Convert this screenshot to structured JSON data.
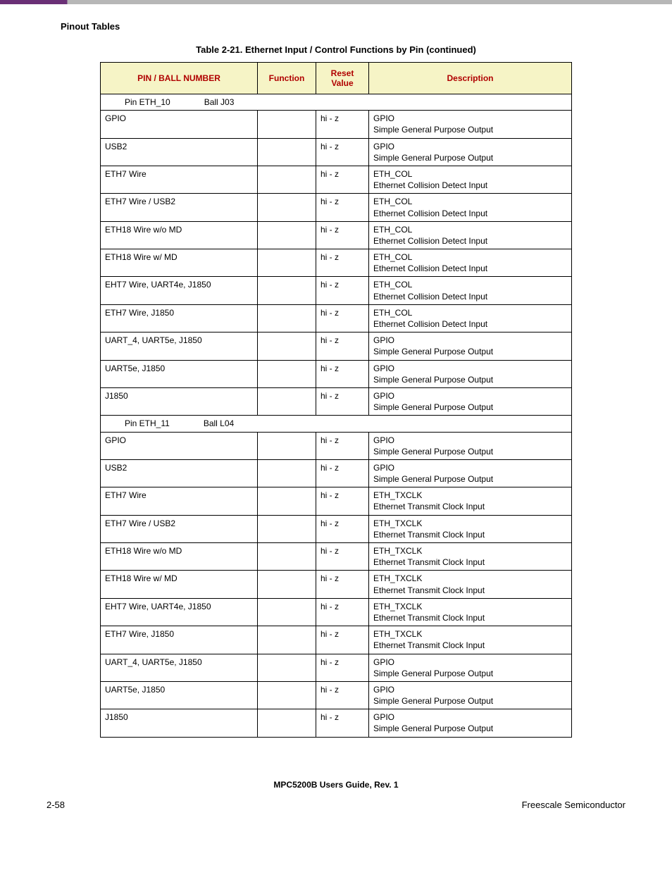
{
  "section_label": "Pinout Tables",
  "table_caption": "Table 2-21. Ethernet Input / Control Functions by Pin (continued)",
  "columns": {
    "pin": "PIN / BALL NUMBER",
    "function": "Function",
    "reset": "Reset Value",
    "description": "Description"
  },
  "groups": [
    {
      "pin_label": "Pin  ETH_10",
      "ball_label": "Ball J03",
      "rows": [
        {
          "pin": "GPIO",
          "function": "",
          "reset": "hi - z",
          "desc1": "GPIO",
          "desc2": "Simple General Purpose Output"
        },
        {
          "pin": "USB2",
          "function": "",
          "reset": "hi - z",
          "desc1": "GPIO",
          "desc2": "Simple General Purpose Output"
        },
        {
          "pin": "ETH7 Wire",
          "function": "",
          "reset": "hi - z",
          "desc1": "ETH_COL",
          "desc2": "Ethernet Collision Detect Input"
        },
        {
          "pin": "ETH7 Wire / USB2",
          "function": "",
          "reset": "hi - z",
          "desc1": "ETH_COL",
          "desc2": "Ethernet Collision Detect Input"
        },
        {
          "pin": "ETH18 Wire w/o MD",
          "function": "",
          "reset": "hi - z",
          "desc1": "ETH_COL",
          "desc2": "Ethernet Collision Detect Input"
        },
        {
          "pin": "ETH18 Wire w/ MD",
          "function": "",
          "reset": "hi - z",
          "desc1": "ETH_COL",
          "desc2": "Ethernet Collision Detect Input"
        },
        {
          "pin": "EHT7 Wire, UART4e, J1850",
          "function": "",
          "reset": "hi - z",
          "desc1": "ETH_COL",
          "desc2": "Ethernet Collision Detect Input"
        },
        {
          "pin": "ETH7 Wire, J1850",
          "function": "",
          "reset": "hi - z",
          "desc1": "ETH_COL",
          "desc2": "Ethernet Collision Detect Input"
        },
        {
          "pin": "UART_4, UART5e, J1850",
          "function": "",
          "reset": "hi - z",
          "desc1": "GPIO",
          "desc2": "Simple General Purpose Output"
        },
        {
          "pin": "UART5e, J1850",
          "function": "",
          "reset": "hi - z",
          "desc1": "GPIO",
          "desc2": "Simple General Purpose Output"
        },
        {
          "pin": "J1850",
          "function": "",
          "reset": "hi - z",
          "desc1": "GPIO",
          "desc2": "Simple General Purpose Output"
        }
      ]
    },
    {
      "pin_label": "Pin  ETH_11",
      "ball_label": "Ball L04",
      "rows": [
        {
          "pin": "GPIO",
          "function": "",
          "reset": "hi - z",
          "desc1": "GPIO",
          "desc2": "Simple General Purpose Output"
        },
        {
          "pin": "USB2",
          "function": "",
          "reset": "hi - z",
          "desc1": "GPIO",
          "desc2": "Simple General Purpose Output"
        },
        {
          "pin": "ETH7 Wire",
          "function": "",
          "reset": "hi - z",
          "desc1": "ETH_TXCLK",
          "desc2": "Ethernet Transmit Clock Input"
        },
        {
          "pin": "ETH7 Wire / USB2",
          "function": "",
          "reset": "hi - z",
          "desc1": "ETH_TXCLK",
          "desc2": "Ethernet Transmit Clock Input"
        },
        {
          "pin": "ETH18 Wire w/o MD",
          "function": "",
          "reset": "hi - z",
          "desc1": "ETH_TXCLK",
          "desc2": "Ethernet Transmit Clock Input"
        },
        {
          "pin": "ETH18 Wire w/ MD",
          "function": "",
          "reset": "hi - z",
          "desc1": "ETH_TXCLK",
          "desc2": "Ethernet Transmit Clock Input"
        },
        {
          "pin": "EHT7 Wire, UART4e, J1850",
          "function": "",
          "reset": "hi - z",
          "desc1": "ETH_TXCLK",
          "desc2": "Ethernet Transmit Clock Input"
        },
        {
          "pin": "ETH7 Wire, J1850",
          "function": "",
          "reset": "hi - z",
          "desc1": "ETH_TXCLK",
          "desc2": "Ethernet Transmit Clock Input"
        },
        {
          "pin": "UART_4, UART5e, J1850",
          "function": "",
          "reset": "hi - z",
          "desc1": "GPIO",
          "desc2": "Simple General Purpose Output"
        },
        {
          "pin": "UART5e, J1850",
          "function": "",
          "reset": "hi - z",
          "desc1": "GPIO",
          "desc2": "Simple General Purpose Output"
        },
        {
          "pin": "J1850",
          "function": "",
          "reset": "hi - z",
          "desc1": "GPIO",
          "desc2": "Simple General Purpose Output"
        }
      ]
    }
  ],
  "footer_center": "MPC5200B Users Guide, Rev. 1",
  "footer_left": "2-58",
  "footer_right": "Freescale Semiconductor"
}
